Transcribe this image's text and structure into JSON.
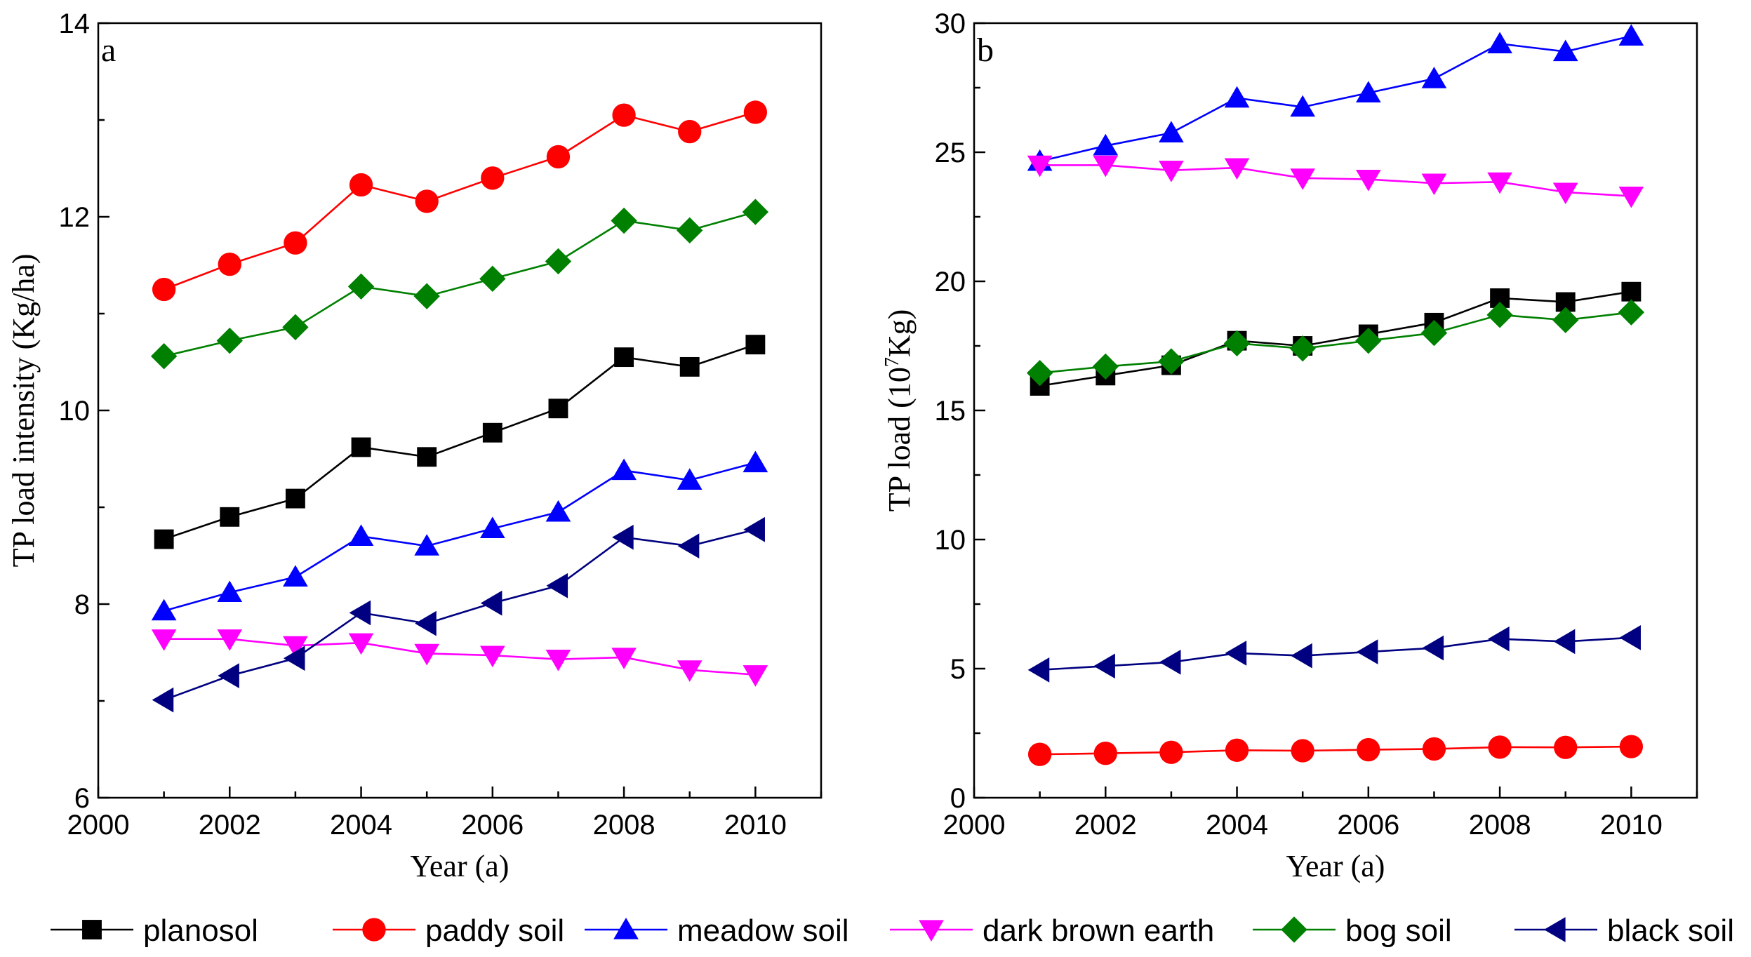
{
  "chart_data": [
    {
      "type": "line",
      "panel": "a",
      "xlabel": "Year (a)",
      "ylabel": "TP load intensity (Kg/ha)",
      "xlim": [
        2000,
        2011
      ],
      "ylim": [
        6,
        14
      ],
      "xticks": [
        2000,
        2002,
        2004,
        2006,
        2008,
        2010
      ],
      "yticks": [
        6,
        8,
        10,
        12,
        14
      ],
      "x": [
        2001,
        2002,
        2003,
        2004,
        2005,
        2006,
        2007,
        2008,
        2009,
        2010
      ],
      "series": [
        {
          "name": "planosol",
          "values": [
            8.67,
            8.9,
            9.09,
            9.62,
            9.52,
            9.77,
            10.02,
            10.55,
            10.45,
            10.68
          ]
        },
        {
          "name": "paddy soil",
          "values": [
            11.25,
            11.51,
            11.73,
            12.33,
            12.16,
            12.4,
            12.62,
            13.05,
            12.88,
            13.08
          ]
        },
        {
          "name": "meadow soil",
          "values": [
            7.93,
            8.12,
            8.28,
            8.7,
            8.6,
            8.78,
            8.95,
            9.38,
            9.28,
            9.46
          ]
        },
        {
          "name": "dark brown earth",
          "values": [
            7.64,
            7.64,
            7.57,
            7.6,
            7.49,
            7.47,
            7.43,
            7.45,
            7.32,
            7.27
          ]
        },
        {
          "name": "bog soil",
          "values": [
            10.56,
            10.72,
            10.86,
            11.28,
            11.18,
            11.36,
            11.54,
            11.96,
            11.86,
            12.05
          ]
        },
        {
          "name": "black soil",
          "values": [
            7.01,
            7.26,
            7.44,
            7.91,
            7.8,
            8.01,
            8.19,
            8.69,
            8.6,
            8.77
          ]
        }
      ]
    },
    {
      "type": "line",
      "panel": "b",
      "xlabel": "Year (a)",
      "ylabel_main": "TP load (10",
      "ylabel_sup": "7",
      "ylabel_unit": "Kg)",
      "xlim": [
        2000,
        2011
      ],
      "ylim": [
        0,
        30
      ],
      "xticks": [
        2000,
        2002,
        2004,
        2006,
        2008,
        2010
      ],
      "yticks": [
        0,
        5,
        10,
        15,
        20,
        25,
        30
      ],
      "x": [
        2001,
        2002,
        2003,
        2004,
        2005,
        2006,
        2007,
        2008,
        2009,
        2010
      ],
      "series": [
        {
          "name": "planosol",
          "values": [
            15.95,
            16.35,
            16.75,
            17.7,
            17.5,
            17.95,
            18.4,
            19.35,
            19.2,
            19.6
          ]
        },
        {
          "name": "paddy soil",
          "values": [
            1.68,
            1.72,
            1.76,
            1.84,
            1.82,
            1.86,
            1.89,
            1.96,
            1.95,
            1.98
          ]
        },
        {
          "name": "meadow soil",
          "values": [
            24.65,
            25.25,
            25.75,
            27.1,
            26.75,
            27.3,
            27.85,
            29.2,
            28.9,
            29.5
          ]
        },
        {
          "name": "dark brown earth",
          "values": [
            24.5,
            24.5,
            24.3,
            24.4,
            24.0,
            23.95,
            23.8,
            23.85,
            23.45,
            23.3
          ]
        },
        {
          "name": "bog soil",
          "values": [
            16.45,
            16.7,
            16.9,
            17.6,
            17.4,
            17.7,
            18.0,
            18.7,
            18.5,
            18.8
          ]
        },
        {
          "name": "black soil",
          "values": [
            4.95,
            5.1,
            5.25,
            5.6,
            5.5,
            5.65,
            5.8,
            6.15,
            6.05,
            6.2
          ]
        }
      ]
    }
  ],
  "legend": {
    "placement": "bottom",
    "entries": [
      {
        "name": "planosol",
        "color": "#000000",
        "marker": "square"
      },
      {
        "name": "paddy soil",
        "color": "#ff0000",
        "marker": "circle"
      },
      {
        "name": "meadow soil",
        "color": "#0000ff",
        "marker": "triangle-up"
      },
      {
        "name": "dark brown earth",
        "color": "#ff00ff",
        "marker": "triangle-down"
      },
      {
        "name": "bog soil",
        "color": "#008000",
        "marker": "diamond"
      },
      {
        "name": "black soil",
        "color": "#000080",
        "marker": "triangle-left"
      }
    ]
  }
}
